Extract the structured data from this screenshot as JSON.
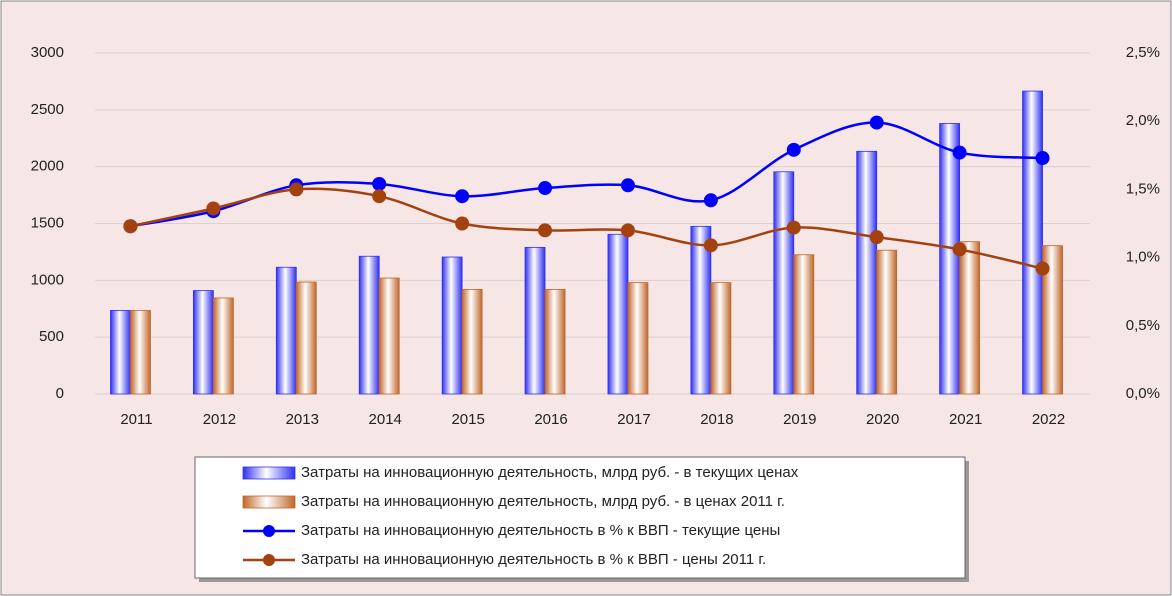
{
  "chart_data": {
    "type": "bar_line",
    "categories": [
      "2011",
      "2012",
      "2013",
      "2014",
      "2015",
      "2016",
      "2017",
      "2018",
      "2019",
      "2020",
      "2021",
      "2022"
    ],
    "series": [
      {
        "name": "Затраты на инновационную деятельность, млрд руб. - в текущих ценах",
        "type": "bar",
        "color": "#3030f0",
        "values": [
          735,
          910,
          1115,
          1212,
          1205,
          1290,
          1405,
          1475,
          1955,
          2135,
          2380,
          2665
        ]
      },
      {
        "name": "Затраты на инновационную деятельность, млрд руб. - в ценах 2011 г.",
        "type": "bar",
        "color": "#c0662a",
        "values": [
          735,
          845,
          985,
          1020,
          920,
          920,
          980,
          980,
          1225,
          1265,
          1340,
          1305
        ]
      },
      {
        "name": "Затраты на инновационную деятельность в % к ВВП - текущие цены",
        "type": "line",
        "axis": "y2",
        "color": "#0000ff",
        "values": [
          1.23,
          1.34,
          1.53,
          1.54,
          1.45,
          1.51,
          1.53,
          1.42,
          1.79,
          1.99,
          1.77,
          1.73
        ]
      },
      {
        "name": "Затраты на инновационную деятельность в % к ВВП - цены 2011 г.",
        "type": "line",
        "axis": "y2",
        "color": "#a3420f",
        "values": [
          1.23,
          1.36,
          1.5,
          1.45,
          1.25,
          1.2,
          1.2,
          1.09,
          1.22,
          1.15,
          1.06,
          0.92
        ]
      }
    ],
    "ylim": [
      0,
      3000
    ],
    "yticks": [
      0,
      500,
      1000,
      1500,
      2000,
      2500,
      3000
    ],
    "y2lim": [
      0,
      2.5
    ],
    "y2ticks": [
      {
        "value": 0,
        "label": "0,0%"
      },
      {
        "value": 0.5,
        "label": "0,5%"
      },
      {
        "value": 1,
        "label": "1,0%"
      },
      {
        "value": 1.5,
        "label": "1,5%"
      },
      {
        "value": 2,
        "label": "2,0%"
      },
      {
        "value": 2.5,
        "label": "2,5%"
      }
    ],
    "grid": true,
    "smooth": true,
    "legend": "bottom"
  }
}
